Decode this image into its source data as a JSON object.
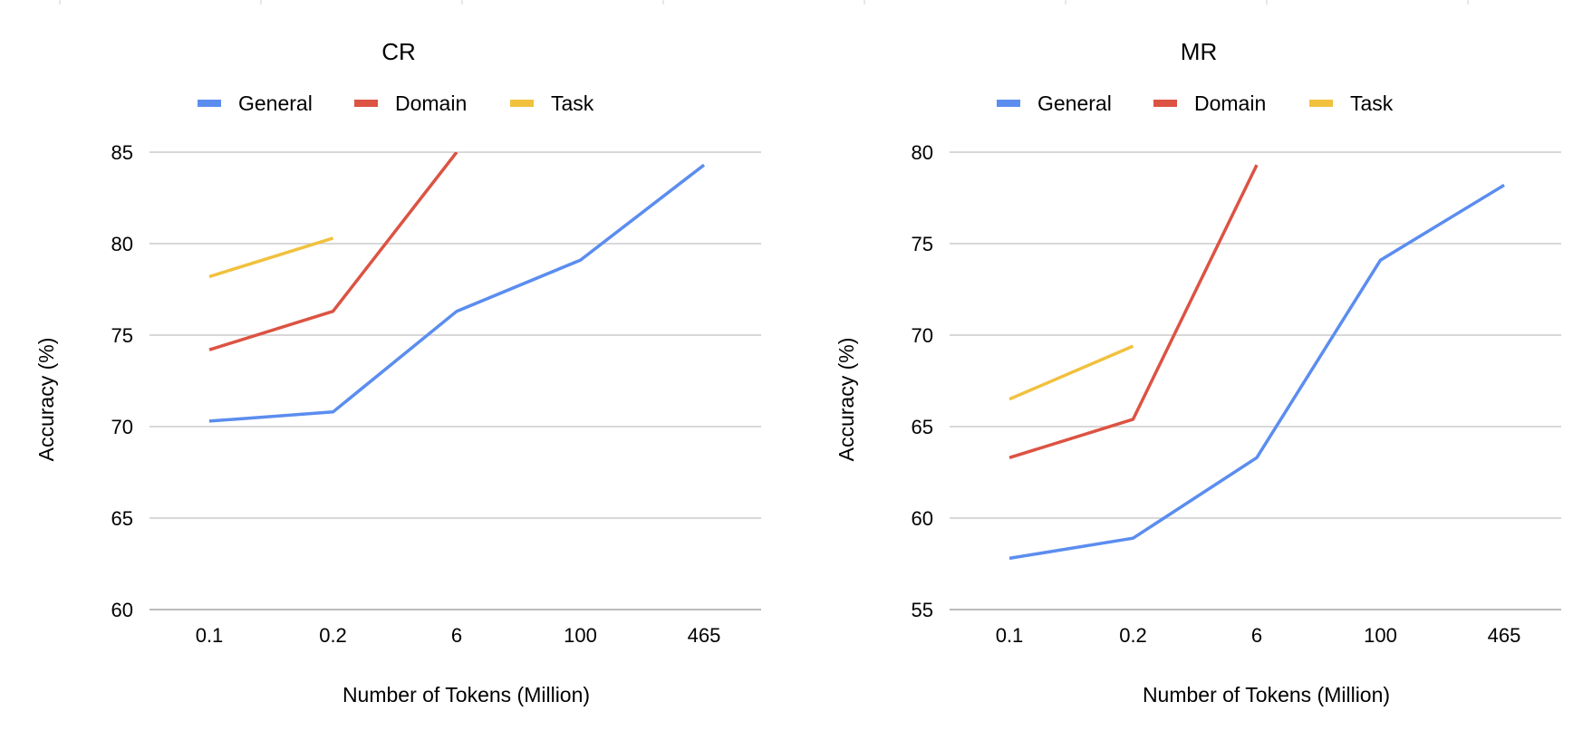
{
  "colors": {
    "General": "#5b8def",
    "Domain": "#dc5343",
    "Task": "#f1c13e"
  },
  "chart_data": [
    {
      "type": "line",
      "title": "CR",
      "xlabel": "Number of Tokens (Million)",
      "ylabel": "Accuracy (%)",
      "categories": [
        "0.1",
        "0.2",
        "6",
        "100",
        "465"
      ],
      "ylim": [
        60,
        85
      ],
      "yticks": [
        60,
        65,
        70,
        75,
        80,
        85
      ],
      "grid": true,
      "legend": "top",
      "series": [
        {
          "name": "General",
          "values": [
            70.3,
            70.8,
            76.3,
            79.1,
            84.3
          ]
        },
        {
          "name": "Domain",
          "values": [
            74.2,
            76.3,
            85.0,
            null,
            null
          ]
        },
        {
          "name": "Task",
          "values": [
            78.2,
            80.3,
            null,
            null,
            null
          ]
        }
      ]
    },
    {
      "type": "line",
      "title": "MR",
      "xlabel": "Number of Tokens (Million)",
      "ylabel": "Accuracy (%)",
      "categories": [
        "0.1",
        "0.2",
        "6",
        "100",
        "465"
      ],
      "ylim": [
        55,
        80
      ],
      "yticks": [
        55,
        60,
        65,
        70,
        75,
        80
      ],
      "grid": true,
      "legend": "top",
      "series": [
        {
          "name": "General",
          "values": [
            57.8,
            58.9,
            63.3,
            74.1,
            78.2
          ]
        },
        {
          "name": "Domain",
          "values": [
            63.3,
            65.4,
            79.3,
            null,
            null
          ]
        },
        {
          "name": "Task",
          "values": [
            66.5,
            69.4,
            null,
            null,
            null
          ]
        }
      ]
    }
  ]
}
